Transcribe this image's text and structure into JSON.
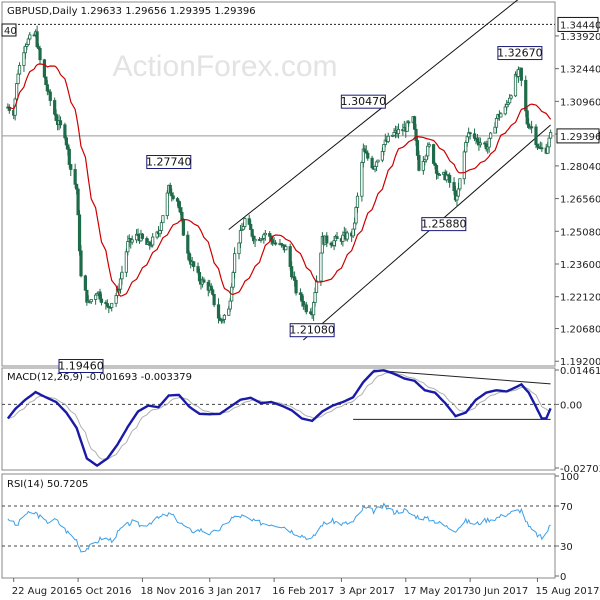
{
  "chart_data": [
    {
      "type": "candlestick",
      "header": "GBPUSD,Daily   1.29633 1.29656 1.29395 1.29396",
      "watermark": "ActionForex.com",
      "ylim": [
        1.1903,
        1.3541
      ],
      "y_ticks": [
        "1.33920",
        "1.32440",
        "1.30960",
        "1.29480",
        "1.28040",
        "1.26560",
        "1.25080",
        "1.23600",
        "1.22120",
        "1.20680",
        "1.19200"
      ],
      "y_tick_values": [
        1.3392,
        1.3244,
        1.3096,
        1.2948,
        1.2804,
        1.2656,
        1.2508,
        1.236,
        1.2212,
        1.2068,
        1.192
      ],
      "current_price": "1.29396",
      "current_price_value": 1.29396,
      "resistance_label": "1.34440",
      "resistance_value": 1.3444,
      "left_edge_label": "40",
      "annotations": [
        {
          "text": "1.19460",
          "date": "2016-10-07",
          "value": 1.1946
        },
        {
          "text": "1.27740",
          "date": "2016-12-06",
          "value": 1.2774
        },
        {
          "text": "1.21080",
          "date": "2017-03-14",
          "value": 1.2108
        },
        {
          "text": "1.30470",
          "date": "2017-04-18",
          "value": 1.3047
        },
        {
          "text": "1.25880",
          "date": "2017-06-12",
          "value": 1.2588
        },
        {
          "text": "1.32670",
          "date": "2017-08-03",
          "value": 1.3267
        }
      ],
      "channel": {
        "upper": [
          {
            "date": "2017-01-16",
            "value": 1.2516
          },
          {
            "date": "2017-08-02",
            "value": 1.3558
          }
        ],
        "lower": [
          {
            "date": "2017-03-08",
            "value": 1.2016
          },
          {
            "date": "2017-08-24",
            "value": 1.2989
          }
        ]
      },
      "series": [
        {
          "name": "price",
          "kind": "candles"
        },
        {
          "name": "sma",
          "kind": "line",
          "color": "#cc0000"
        }
      ],
      "key_points": [
        {
          "date": "2016-08-18",
          "value": 1.307
        },
        {
          "date": "2016-08-22",
          "value": 1.305
        },
        {
          "date": "2016-08-25",
          "value": 1.323
        },
        {
          "date": "2016-08-30",
          "value": 1.336
        },
        {
          "date": "2016-09-06",
          "value": 1.34
        },
        {
          "date": "2016-09-09",
          "value": 1.328
        },
        {
          "date": "2016-09-15",
          "value": 1.312
        },
        {
          "date": "2016-09-21",
          "value": 1.3
        },
        {
          "date": "2016-09-26",
          "value": 1.295
        },
        {
          "date": "2016-09-30",
          "value": 1.279
        },
        {
          "date": "2016-10-04",
          "value": 1.27
        },
        {
          "date": "2016-10-07",
          "value": 1.23
        },
        {
          "date": "2016-10-12",
          "value": 1.218
        },
        {
          "date": "2016-10-18",
          "value": 1.224
        },
        {
          "date": "2016-10-25",
          "value": 1.216
        },
        {
          "date": "2016-11-01",
          "value": 1.223
        },
        {
          "date": "2016-11-08",
          "value": 1.245
        },
        {
          "date": "2016-11-15",
          "value": 1.249
        },
        {
          "date": "2016-11-22",
          "value": 1.244
        },
        {
          "date": "2016-11-29",
          "value": 1.25
        },
        {
          "date": "2016-12-06",
          "value": 1.27
        },
        {
          "date": "2016-12-12",
          "value": 1.265
        },
        {
          "date": "2016-12-19",
          "value": 1.24
        },
        {
          "date": "2016-12-27",
          "value": 1.229
        },
        {
          "date": "2017-01-03",
          "value": 1.225
        },
        {
          "date": "2017-01-10",
          "value": 1.21
        },
        {
          "date": "2017-01-16",
          "value": 1.215
        },
        {
          "date": "2017-01-20",
          "value": 1.24
        },
        {
          "date": "2017-01-27",
          "value": 1.256
        },
        {
          "date": "2017-02-03",
          "value": 1.247
        },
        {
          "date": "2017-02-10",
          "value": 1.25
        },
        {
          "date": "2017-02-17",
          "value": 1.245
        },
        {
          "date": "2017-02-24",
          "value": 1.243
        },
        {
          "date": "2017-03-03",
          "value": 1.224
        },
        {
          "date": "2017-03-10",
          "value": 1.216
        },
        {
          "date": "2017-03-14",
          "value": 1.215
        },
        {
          "date": "2017-03-21",
          "value": 1.247
        },
        {
          "date": "2017-03-28",
          "value": 1.246
        },
        {
          "date": "2017-04-04",
          "value": 1.248
        },
        {
          "date": "2017-04-11",
          "value": 1.25
        },
        {
          "date": "2017-04-18",
          "value": 1.287
        },
        {
          "date": "2017-04-25",
          "value": 1.28
        },
        {
          "date": "2017-05-02",
          "value": 1.29
        },
        {
          "date": "2017-05-09",
          "value": 1.295
        },
        {
          "date": "2017-05-16",
          "value": 1.297
        },
        {
          "date": "2017-05-22",
          "value": 1.301
        },
        {
          "date": "2017-05-26",
          "value": 1.28
        },
        {
          "date": "2017-06-02",
          "value": 1.289
        },
        {
          "date": "2017-06-09",
          "value": 1.275
        },
        {
          "date": "2017-06-14",
          "value": 1.276
        },
        {
          "date": "2017-06-21",
          "value": 1.265
        },
        {
          "date": "2017-06-28",
          "value": 1.295
        },
        {
          "date": "2017-07-05",
          "value": 1.292
        },
        {
          "date": "2017-07-12",
          "value": 1.289
        },
        {
          "date": "2017-07-18",
          "value": 1.302
        },
        {
          "date": "2017-07-24",
          "value": 1.306
        },
        {
          "date": "2017-07-31",
          "value": 1.32
        },
        {
          "date": "2017-08-03",
          "value": 1.323
        },
        {
          "date": "2017-08-08",
          "value": 1.3
        },
        {
          "date": "2017-08-11",
          "value": 1.298
        },
        {
          "date": "2017-08-16",
          "value": 1.288
        },
        {
          "date": "2017-08-21",
          "value": 1.288
        },
        {
          "date": "2017-08-24",
          "value": 1.294
        }
      ]
    },
    {
      "type": "line",
      "header": "MACD(12,26,9) -0.001693 -0.003379",
      "ylim": [
        -0.02703,
        0.01461
      ],
      "y_ticks": [
        "0.014614",
        "0.00",
        "-0.027031"
      ],
      "y_tick_values": [
        0.014614,
        0.0,
        -0.027031
      ],
      "trendlines": [
        {
          "kind": "falling",
          "points": [
            {
              "date": "2017-04-25",
              "value": 0.01456
            },
            {
              "date": "2017-08-24",
              "value": 0.0087
            }
          ]
        },
        {
          "kind": "flat",
          "points": [
            {
              "date": "2017-04-11",
              "value": -0.00635
            },
            {
              "date": "2017-08-24",
              "value": -0.00635
            }
          ]
        }
      ],
      "series": [
        {
          "name": "MACD",
          "color": "#1a1aa8"
        },
        {
          "name": "Signal",
          "color": "#b0b0b0"
        }
      ],
      "key_points": [
        {
          "date": "2016-08-18",
          "value": -0.006
        },
        {
          "date": "2016-08-23",
          "value": -0.002
        },
        {
          "date": "2016-08-30",
          "value": 0.002
        },
        {
          "date": "2016-09-06",
          "value": 0.0052
        },
        {
          "date": "2016-09-13",
          "value": 0.003
        },
        {
          "date": "2016-09-20",
          "value": 0.001
        },
        {
          "date": "2016-09-27",
          "value": -0.0035
        },
        {
          "date": "2016-10-04",
          "value": -0.01
        },
        {
          "date": "2016-10-11",
          "value": -0.023
        },
        {
          "date": "2016-10-18",
          "value": -0.026
        },
        {
          "date": "2016-10-25",
          "value": -0.023
        },
        {
          "date": "2016-11-01",
          "value": -0.017
        },
        {
          "date": "2016-11-08",
          "value": -0.0095
        },
        {
          "date": "2016-11-15",
          "value": -0.003
        },
        {
          "date": "2016-11-22",
          "value": -0.0005
        },
        {
          "date": "2016-11-29",
          "value": -0.0012
        },
        {
          "date": "2016-12-06",
          "value": 0.0038
        },
        {
          "date": "2016-12-13",
          "value": 0.004
        },
        {
          "date": "2016-12-20",
          "value": -0.001
        },
        {
          "date": "2016-12-27",
          "value": -0.004
        },
        {
          "date": "2017-01-03",
          "value": -0.0042
        },
        {
          "date": "2017-01-10",
          "value": -0.004
        },
        {
          "date": "2017-01-17",
          "value": -0.001
        },
        {
          "date": "2017-01-24",
          "value": 0.002
        },
        {
          "date": "2017-01-31",
          "value": 0.0028
        },
        {
          "date": "2017-02-07",
          "value": 0.0005
        },
        {
          "date": "2017-02-14",
          "value": 0.001
        },
        {
          "date": "2017-02-21",
          "value": -0.0005
        },
        {
          "date": "2017-02-28",
          "value": -0.0025
        },
        {
          "date": "2017-03-07",
          "value": -0.006
        },
        {
          "date": "2017-03-14",
          "value": -0.007
        },
        {
          "date": "2017-03-21",
          "value": -0.003
        },
        {
          "date": "2017-03-28",
          "value": -0.0005
        },
        {
          "date": "2017-04-04",
          "value": 0.001
        },
        {
          "date": "2017-04-11",
          "value": 0.003
        },
        {
          "date": "2017-04-18",
          "value": 0.0095
        },
        {
          "date": "2017-04-25",
          "value": 0.014
        },
        {
          "date": "2017-05-02",
          "value": 0.0145
        },
        {
          "date": "2017-05-09",
          "value": 0.013
        },
        {
          "date": "2017-05-16",
          "value": 0.011
        },
        {
          "date": "2017-05-23",
          "value": 0.01
        },
        {
          "date": "2017-05-30",
          "value": 0.006
        },
        {
          "date": "2017-06-06",
          "value": 0.005
        },
        {
          "date": "2017-06-13",
          "value": 0.0005
        },
        {
          "date": "2017-06-20",
          "value": -0.005
        },
        {
          "date": "2017-06-27",
          "value": -0.0035
        },
        {
          "date": "2017-07-04",
          "value": 0.002
        },
        {
          "date": "2017-07-11",
          "value": 0.005
        },
        {
          "date": "2017-07-18",
          "value": 0.006
        },
        {
          "date": "2017-07-25",
          "value": 0.0055
        },
        {
          "date": "2017-08-01",
          "value": 0.0075
        },
        {
          "date": "2017-08-04",
          "value": 0.0085
        },
        {
          "date": "2017-08-09",
          "value": 0.005
        },
        {
          "date": "2017-08-14",
          "value": -0.001
        },
        {
          "date": "2017-08-18",
          "value": -0.006
        },
        {
          "date": "2017-08-21",
          "value": -0.006
        },
        {
          "date": "2017-08-24",
          "value": -0.0017
        }
      ]
    },
    {
      "type": "line",
      "header": "RSI(14) 50.7205",
      "ylim": [
        0,
        100
      ],
      "y_ticks": [
        "100",
        "70",
        "30",
        "0"
      ],
      "y_tick_values": [
        100,
        70,
        30,
        0
      ],
      "series": [
        {
          "name": "RSI(14)",
          "color": "#3aa0e8"
        }
      ],
      "key_points": [
        {
          "date": "2016-08-18",
          "value": 58
        },
        {
          "date": "2016-08-24",
          "value": 50
        },
        {
          "date": "2016-08-30",
          "value": 62
        },
        {
          "date": "2016-09-06",
          "value": 63
        },
        {
          "date": "2016-09-13",
          "value": 54
        },
        {
          "date": "2016-09-20",
          "value": 56
        },
        {
          "date": "2016-09-27",
          "value": 45
        },
        {
          "date": "2016-10-04",
          "value": 36
        },
        {
          "date": "2016-10-07",
          "value": 25
        },
        {
          "date": "2016-10-14",
          "value": 30
        },
        {
          "date": "2016-10-21",
          "value": 38
        },
        {
          "date": "2016-10-28",
          "value": 36
        },
        {
          "date": "2016-11-04",
          "value": 48
        },
        {
          "date": "2016-11-11",
          "value": 54
        },
        {
          "date": "2016-11-18",
          "value": 50
        },
        {
          "date": "2016-11-25",
          "value": 55
        },
        {
          "date": "2016-12-02",
          "value": 60
        },
        {
          "date": "2016-12-07",
          "value": 62
        },
        {
          "date": "2016-12-14",
          "value": 53
        },
        {
          "date": "2016-12-21",
          "value": 45
        },
        {
          "date": "2016-12-28",
          "value": 46
        },
        {
          "date": "2017-01-04",
          "value": 42
        },
        {
          "date": "2017-01-11",
          "value": 48
        },
        {
          "date": "2017-01-18",
          "value": 58
        },
        {
          "date": "2017-01-25",
          "value": 60
        },
        {
          "date": "2017-02-01",
          "value": 55
        },
        {
          "date": "2017-02-08",
          "value": 53
        },
        {
          "date": "2017-02-15",
          "value": 52
        },
        {
          "date": "2017-02-22",
          "value": 50
        },
        {
          "date": "2017-03-01",
          "value": 44
        },
        {
          "date": "2017-03-08",
          "value": 40
        },
        {
          "date": "2017-03-14",
          "value": 37
        },
        {
          "date": "2017-03-21",
          "value": 52
        },
        {
          "date": "2017-03-28",
          "value": 55
        },
        {
          "date": "2017-04-04",
          "value": 52
        },
        {
          "date": "2017-04-11",
          "value": 54
        },
        {
          "date": "2017-04-18",
          "value": 68
        },
        {
          "date": "2017-04-25",
          "value": 65
        },
        {
          "date": "2017-05-02",
          "value": 70
        },
        {
          "date": "2017-05-09",
          "value": 64
        },
        {
          "date": "2017-05-16",
          "value": 66
        },
        {
          "date": "2017-05-23",
          "value": 60
        },
        {
          "date": "2017-05-30",
          "value": 58
        },
        {
          "date": "2017-06-06",
          "value": 55
        },
        {
          "date": "2017-06-13",
          "value": 50
        },
        {
          "date": "2017-06-20",
          "value": 46
        },
        {
          "date": "2017-06-27",
          "value": 55
        },
        {
          "date": "2017-07-04",
          "value": 52
        },
        {
          "date": "2017-07-11",
          "value": 56
        },
        {
          "date": "2017-07-18",
          "value": 58
        },
        {
          "date": "2017-07-25",
          "value": 62
        },
        {
          "date": "2017-08-01",
          "value": 65
        },
        {
          "date": "2017-08-04",
          "value": 66
        },
        {
          "date": "2017-08-09",
          "value": 49
        },
        {
          "date": "2017-08-14",
          "value": 42
        },
        {
          "date": "2017-08-18",
          "value": 38
        },
        {
          "date": "2017-08-21",
          "value": 43
        },
        {
          "date": "2017-08-24",
          "value": 51
        }
      ]
    }
  ],
  "x_axis": {
    "range": [
      "2016-08-14",
      "2017-08-27"
    ],
    "ticks": [
      "22 Aug 2016",
      "5 Oct 2016",
      "18 Nov 2016",
      "3 Jan 2017",
      "16 Feb 2017",
      "3 Apr 2017",
      "17 May 2017",
      "30 Jun 2017",
      "15 Aug 2017"
    ],
    "tick_dates": [
      "2016-08-22",
      "2016-10-05",
      "2016-11-18",
      "2017-01-03",
      "2017-02-16",
      "2017-04-03",
      "2017-05-17",
      "2017-06-30",
      "2017-08-15"
    ]
  },
  "colors": {
    "candle": "#1f6b4a",
    "sma": "#cc0000",
    "macd": "#1a1aa8",
    "signal": "#b0b0b0",
    "rsi": "#3aa0e8",
    "frame": "#888888"
  }
}
